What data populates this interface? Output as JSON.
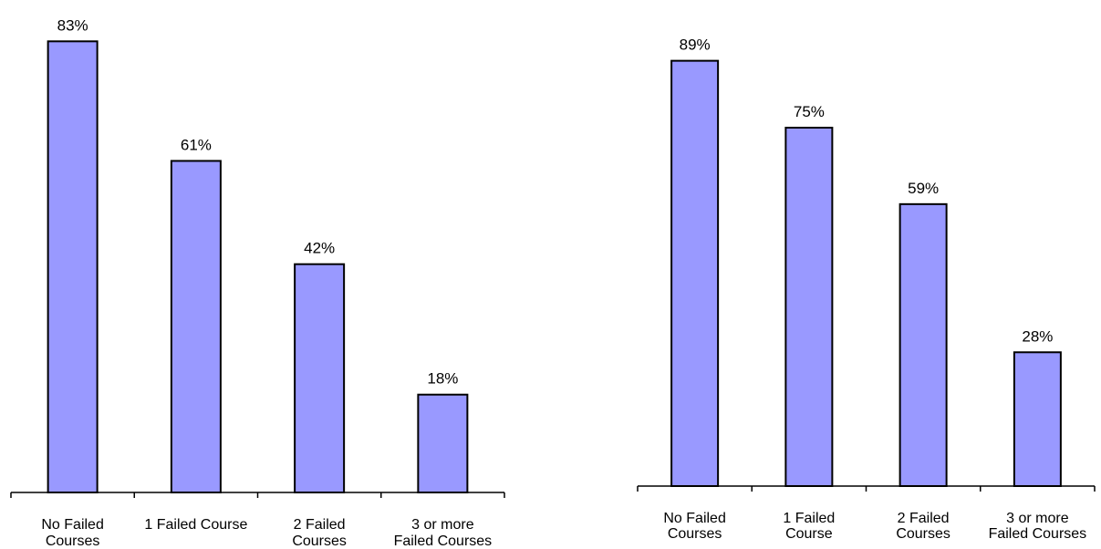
{
  "chart_data": [
    {
      "type": "bar",
      "title": "",
      "xlabel": "",
      "ylabel": "",
      "categories": [
        [
          "No Failed",
          "Courses"
        ],
        [
          "1 Failed Course"
        ],
        [
          "2 Failed",
          "Courses"
        ],
        [
          "3 or more",
          "Failed Courses"
        ]
      ],
      "values": [
        83,
        61,
        42,
        18
      ],
      "data_labels": [
        "83%",
        "61%",
        "42%",
        "18%"
      ],
      "unit": "%",
      "ylim": [
        0,
        100
      ],
      "grid": false,
      "legend": "none",
      "bar_color": "#9999ff"
    },
    {
      "type": "bar",
      "title": "",
      "xlabel": "",
      "ylabel": "",
      "categories": [
        [
          "No Failed",
          "Courses"
        ],
        [
          "1 Failed",
          "Course"
        ],
        [
          "2 Failed",
          "Courses"
        ],
        [
          "3 or more",
          "Failed Courses"
        ]
      ],
      "values": [
        89,
        75,
        59,
        28
      ],
      "data_labels": [
        "89%",
        "75%",
        "59%",
        "28%"
      ],
      "unit": "%",
      "ylim": [
        0,
        100
      ],
      "grid": false,
      "legend": "none",
      "bar_color": "#9999ff"
    }
  ]
}
